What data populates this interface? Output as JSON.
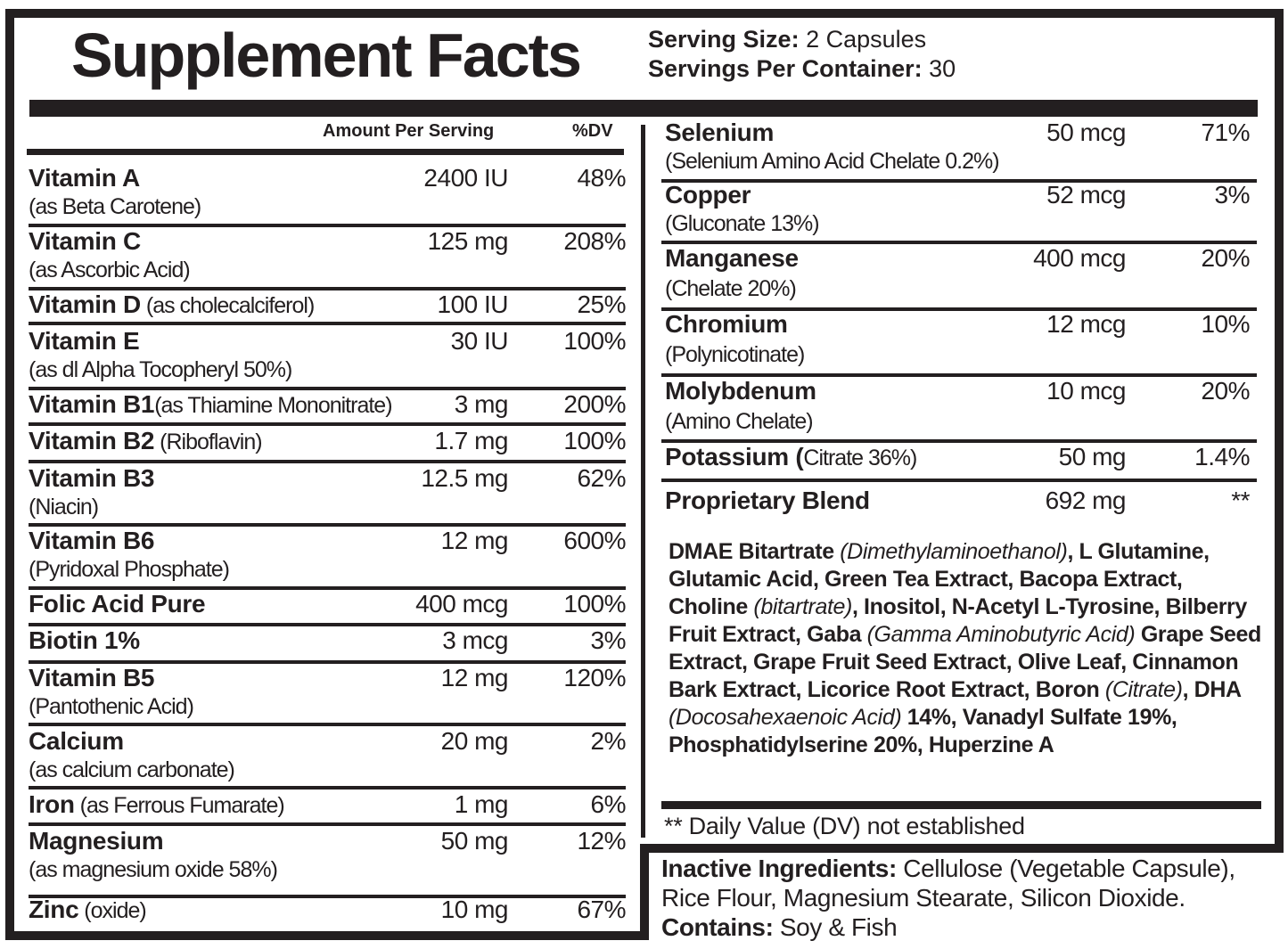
{
  "header": {
    "title": "Supplement Facts",
    "serving_size_label": "Serving Size:",
    "serving_size_value": "2 Capsules",
    "servings_per_container_label": "Servings Per Container:",
    "servings_per_container_value": "30"
  },
  "columns": {
    "amount": "Amount Per Serving",
    "dv": "%DV"
  },
  "left_rows": [
    {
      "name": "Vitamin A",
      "inline": "",
      "sub": "(as Beta Carotene)",
      "amount": "2400 IU",
      "dv": "48%"
    },
    {
      "name": "Vitamin C",
      "inline": "",
      "sub": "(as Ascorbic Acid)",
      "amount": "125 mg",
      "dv": "208%"
    },
    {
      "name": "Vitamin D",
      "inline": " (as cholecalciferol)",
      "sub": "",
      "amount": "100 IU",
      "dv": "25%"
    },
    {
      "name": "Vitamin E",
      "inline": "",
      "sub": "(as dl Alpha Tocopheryl 50%)",
      "amount": "30 IU",
      "dv": "100%"
    },
    {
      "name": "Vitamin B1",
      "inline": "(as Thiamine Mononitrate)",
      "sub": "",
      "amount": "3 mg",
      "dv": "200%"
    },
    {
      "name": "Vitamin B2",
      "inline": " (Riboflavin)",
      "sub": "",
      "amount": "1.7 mg",
      "dv": "100%"
    },
    {
      "name": "Vitamin B3",
      "inline": "",
      "sub": "(Niacin)",
      "amount": "12.5 mg",
      "dv": "62%"
    },
    {
      "name": "Vitamin B6",
      "inline": "",
      "sub": "(Pyridoxal Phosphate)",
      "amount": "12 mg",
      "dv": "600%"
    },
    {
      "name": "Folic Acid Pure",
      "inline": "",
      "sub": "",
      "amount": "400 mcg",
      "dv": "100%"
    },
    {
      "name": "Biotin 1%",
      "inline": "",
      "sub": "",
      "amount": "3 mcg",
      "dv": "3%"
    },
    {
      "name": "Vitamin B5",
      "inline": "",
      "sub": "(Pantothenic Acid)",
      "amount": "12 mg",
      "dv": "120%"
    },
    {
      "name": "Calcium",
      "inline": "",
      "sub": "(as calcium carbonate)",
      "amount": "20 mg",
      "dv": "2%"
    },
    {
      "name": "Iron",
      "inline": " (as Ferrous Fumarate)",
      "sub": "",
      "amount": "1 mg",
      "dv": "6%"
    },
    {
      "name": "Magnesium",
      "inline": "",
      "sub": "(as magnesium oxide 58%)",
      "amount": "50 mg",
      "dv": "12%"
    },
    {
      "name": "Zinc",
      "inline": " (oxide)",
      "sub": "",
      "amount": "10 mg",
      "dv": "67%"
    }
  ],
  "right_rows": [
    {
      "name": "Selenium",
      "inline": "",
      "sub": "(Selenium Amino Acid Chelate 0.2%)",
      "amount": "50 mcg",
      "dv": "71%"
    },
    {
      "name": "Copper",
      "inline": "",
      "sub": "(Gluconate 13%)",
      "amount": "52 mcg",
      "dv": "3%"
    },
    {
      "name": "Manganese",
      "inline": "",
      "sub": "(Chelate 20%)",
      "amount": "400 mcg",
      "dv": "20%"
    },
    {
      "name": "Chromium",
      "inline": "",
      "sub": "(Polynicotinate)",
      "amount": "12 mcg",
      "dv": "10%"
    },
    {
      "name": "Molybdenum",
      "inline": "",
      "sub": "(Amino Chelate)",
      "amount": "10 mcg",
      "dv": "20%"
    },
    {
      "name": "Potassium (",
      "inline": "Citrate 36%)",
      "sub": "",
      "amount": "50 mg",
      "dv": "1.4%"
    },
    {
      "name": "Proprietary Blend",
      "inline": "",
      "sub": "",
      "amount": "692 mg",
      "dv": "**"
    }
  ],
  "proprietary_blend": {
    "segments": [
      {
        "text": "DMAE Bitartrate ",
        "italic": false
      },
      {
        "text": "(Dimethylaminoethanol)",
        "italic": true
      },
      {
        "text": ", L Glutamine, Glutamic Acid, Green Tea Extract, Bacopa Extract, Choline ",
        "italic": false
      },
      {
        "text": "(bitartrate)",
        "italic": true
      },
      {
        "text": ", Inositol, N-Acetyl L-Tyrosine, Bilberry Fruit Extract, Gaba ",
        "italic": false
      },
      {
        "text": "(Gamma Aminobutyric Acid)",
        "italic": true
      },
      {
        "text": " Grape Seed Extract, Grape Fruit Seed Extract, Olive Leaf, Cinnamon Bark Extract, Licorice Root Extract, Boron ",
        "italic": false
      },
      {
        "text": "(Citrate)",
        "italic": true
      },
      {
        "text": ", DHA ",
        "italic": false
      },
      {
        "text": "(Docosahexaenoic Acid)",
        "italic": true
      },
      {
        "text": " 14%, Vanadyl Sulfate 19%, Phosphatidylserine 20%, Huperzine A",
        "italic": false
      }
    ]
  },
  "footnote": "** Daily Value (DV) not established",
  "inactive": {
    "label": "Inactive Ingredients:",
    "value": " Cellulose (Vegetable Capsule), Rice Flour, Magnesium Stearate, Silicon Dioxide.",
    "contains_label": "Contains:",
    "contains_value": " Soy & Fish"
  },
  "colors": {
    "ink": "#231f20",
    "background": "#ffffff"
  }
}
